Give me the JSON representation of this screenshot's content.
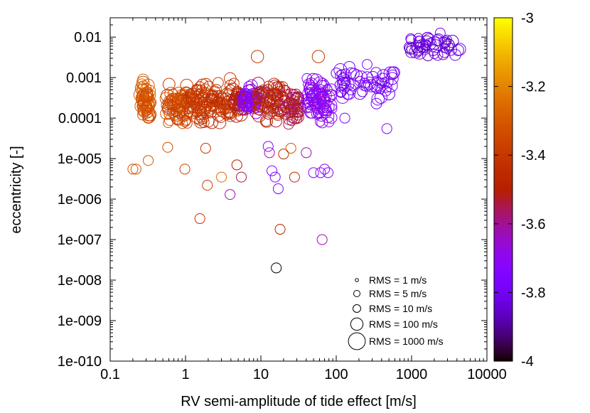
{
  "chart_data": {
    "type": "scatter",
    "title": "",
    "xlabel": "RV semi-amplitude of tide effect [m/s]",
    "ylabel": "eccentricity [-]",
    "xscale": "log",
    "yscale": "log",
    "xlim": [
      0.1,
      10000
    ],
    "ylim": [
      1e-10,
      0.03
    ],
    "x_tick_labels": [
      "0.1",
      "1",
      "10",
      "100",
      "1000",
      "10000"
    ],
    "x_tick_values": [
      0.1,
      1,
      10,
      100,
      1000,
      10000
    ],
    "y_tick_labels": [
      "0.01",
      "0.001",
      "0.0001",
      "1e-005",
      "1e-006",
      "1e-007",
      "1e-008",
      "1e-009",
      "1e-010"
    ],
    "y_tick_values": [
      0.01,
      0.001,
      0.0001,
      1e-05,
      1e-06,
      1e-07,
      1e-08,
      1e-09,
      1e-10
    ],
    "colorbar": {
      "range": [
        -4,
        -3
      ],
      "tick_labels": [
        "-3",
        "-3.2",
        "-3.4",
        "-3.6",
        "-3.8",
        "-4"
      ],
      "tick_values": [
        -3,
        -3.2,
        -3.4,
        -3.6,
        -3.8,
        -4
      ]
    },
    "size_legend": {
      "placement": "bottom-right",
      "entries": [
        {
          "label": "RMS = 1 m/s",
          "rms": 1
        },
        {
          "label": "RMS = 5 m/s",
          "rms": 5
        },
        {
          "label": "RMS = 10 m/s",
          "rms": 10
        },
        {
          "label": "RMS = 100 m/s",
          "rms": 100
        },
        {
          "label": "RMS = 1000 m/s",
          "rms": 1000
        }
      ]
    },
    "clusters": [
      {
        "x_range": [
          0.25,
          0.34
        ],
        "y_range": [
          5e-05,
          0.0013
        ],
        "color_value": -3.3,
        "count": 60
      },
      {
        "x_range": [
          0.55,
          1.1
        ],
        "y_range": [
          4e-05,
          0.0012
        ],
        "color_value": -3.35,
        "count": 70
      },
      {
        "x_range": [
          1.1,
          1.9
        ],
        "y_range": [
          5e-05,
          0.0012
        ],
        "color_value": -3.4,
        "count": 60
      },
      {
        "x_range": [
          2.0,
          4.5
        ],
        "y_range": [
          5e-05,
          0.0013
        ],
        "color_value": -3.42,
        "count": 70
      },
      {
        "x_range": [
          4.5,
          6.0
        ],
        "y_range": [
          8e-05,
          0.001
        ],
        "color_value": -3.5,
        "count": 35
      },
      {
        "x_range": [
          6.0,
          9.0
        ],
        "y_range": [
          0.0001,
          0.0008
        ],
        "color_value": -3.72,
        "count": 50
      },
      {
        "x_range": [
          9.0,
          20.0
        ],
        "y_range": [
          5e-05,
          0.0013
        ],
        "color_value": -3.5,
        "count": 70
      },
      {
        "x_range": [
          20.0,
          32.0
        ],
        "y_range": [
          4e-05,
          0.001
        ],
        "color_value": -3.55,
        "count": 45
      },
      {
        "x_range": [
          40.0,
          90.0
        ],
        "y_range": [
          5e-05,
          0.0016
        ],
        "color_value": -3.7,
        "count": 80
      },
      {
        "x_range": [
          100.0,
          600.0
        ],
        "y_range": [
          0.0002,
          0.0025
        ],
        "color_value": -3.78,
        "count": 60
      },
      {
        "x_range": [
          900.0,
          4500.0
        ],
        "y_range": [
          0.0025,
          0.015
        ],
        "color_value": -3.82,
        "count": 50
      }
    ],
    "points": [
      {
        "x": 0.2,
        "y": 5.5e-06,
        "color_value": -3.3,
        "rms": 30
      },
      {
        "x": 0.22,
        "y": 5.5e-06,
        "color_value": -3.3,
        "rms": 30
      },
      {
        "x": 0.32,
        "y": 9e-06,
        "color_value": -3.3,
        "rms": 30
      },
      {
        "x": 0.58,
        "y": 1.9e-05,
        "color_value": -3.32,
        "rms": 30
      },
      {
        "x": 0.98,
        "y": 5.5e-06,
        "color_value": -3.35,
        "rms": 30
      },
      {
        "x": 1.55,
        "y": 3.3e-07,
        "color_value": -3.4,
        "rms": 30
      },
      {
        "x": 1.85,
        "y": 1.8e-05,
        "color_value": -3.4,
        "rms": 30
      },
      {
        "x": 1.95,
        "y": 2.2e-06,
        "color_value": -3.4,
        "rms": 30
      },
      {
        "x": 3.0,
        "y": 3.5e-06,
        "color_value": -3.25,
        "rms": 30
      },
      {
        "x": 3.9,
        "y": 1.3e-06,
        "color_value": -3.62,
        "rms": 30
      },
      {
        "x": 4.8,
        "y": 7e-06,
        "color_value": -3.5,
        "rms": 30
      },
      {
        "x": 5.5,
        "y": 3.5e-06,
        "color_value": -3.55,
        "rms": 30
      },
      {
        "x": 9.0,
        "y": 0.0033,
        "color_value": -3.4,
        "rms": 100
      },
      {
        "x": 12.5,
        "y": 2e-05,
        "color_value": -3.72,
        "rms": 30
      },
      {
        "x": 13.0,
        "y": 1.4e-05,
        "color_value": -3.62,
        "rms": 30
      },
      {
        "x": 14.0,
        "y": 5e-06,
        "color_value": -3.75,
        "rms": 30
      },
      {
        "x": 15.5,
        "y": 3.5e-06,
        "color_value": -3.78,
        "rms": 30
      },
      {
        "x": 16.0,
        "y": 2e-08,
        "color_value": -4.0,
        "rms": 30
      },
      {
        "x": 17.0,
        "y": 1.8e-06,
        "color_value": -3.78,
        "rms": 30
      },
      {
        "x": 18.0,
        "y": 1.8e-07,
        "color_value": -3.5,
        "rms": 30
      },
      {
        "x": 20.0,
        "y": 1.3e-05,
        "color_value": -3.45,
        "rms": 30
      },
      {
        "x": 25.0,
        "y": 1.8e-05,
        "color_value": -3.3,
        "rms": 30
      },
      {
        "x": 28.0,
        "y": 3.5e-06,
        "color_value": -3.45,
        "rms": 30
      },
      {
        "x": 40.0,
        "y": 1.4e-05,
        "color_value": -3.62,
        "rms": 30
      },
      {
        "x": 50.0,
        "y": 4.5e-06,
        "color_value": -3.72,
        "rms": 30
      },
      {
        "x": 58.0,
        "y": 0.0033,
        "color_value": -3.4,
        "rms": 100
      },
      {
        "x": 62.0,
        "y": 4.5e-06,
        "color_value": -3.72,
        "rms": 30
      },
      {
        "x": 65.0,
        "y": 1e-07,
        "color_value": -3.62,
        "rms": 30
      },
      {
        "x": 70.0,
        "y": 5.5e-06,
        "color_value": -3.7,
        "rms": 30
      },
      {
        "x": 78.0,
        "y": 4.5e-06,
        "color_value": -3.72,
        "rms": 30
      },
      {
        "x": 130.0,
        "y": 0.0001,
        "color_value": -3.75,
        "rms": 30
      },
      {
        "x": 470.0,
        "y": 5.5e-05,
        "color_value": -3.72,
        "rms": 30
      }
    ]
  }
}
